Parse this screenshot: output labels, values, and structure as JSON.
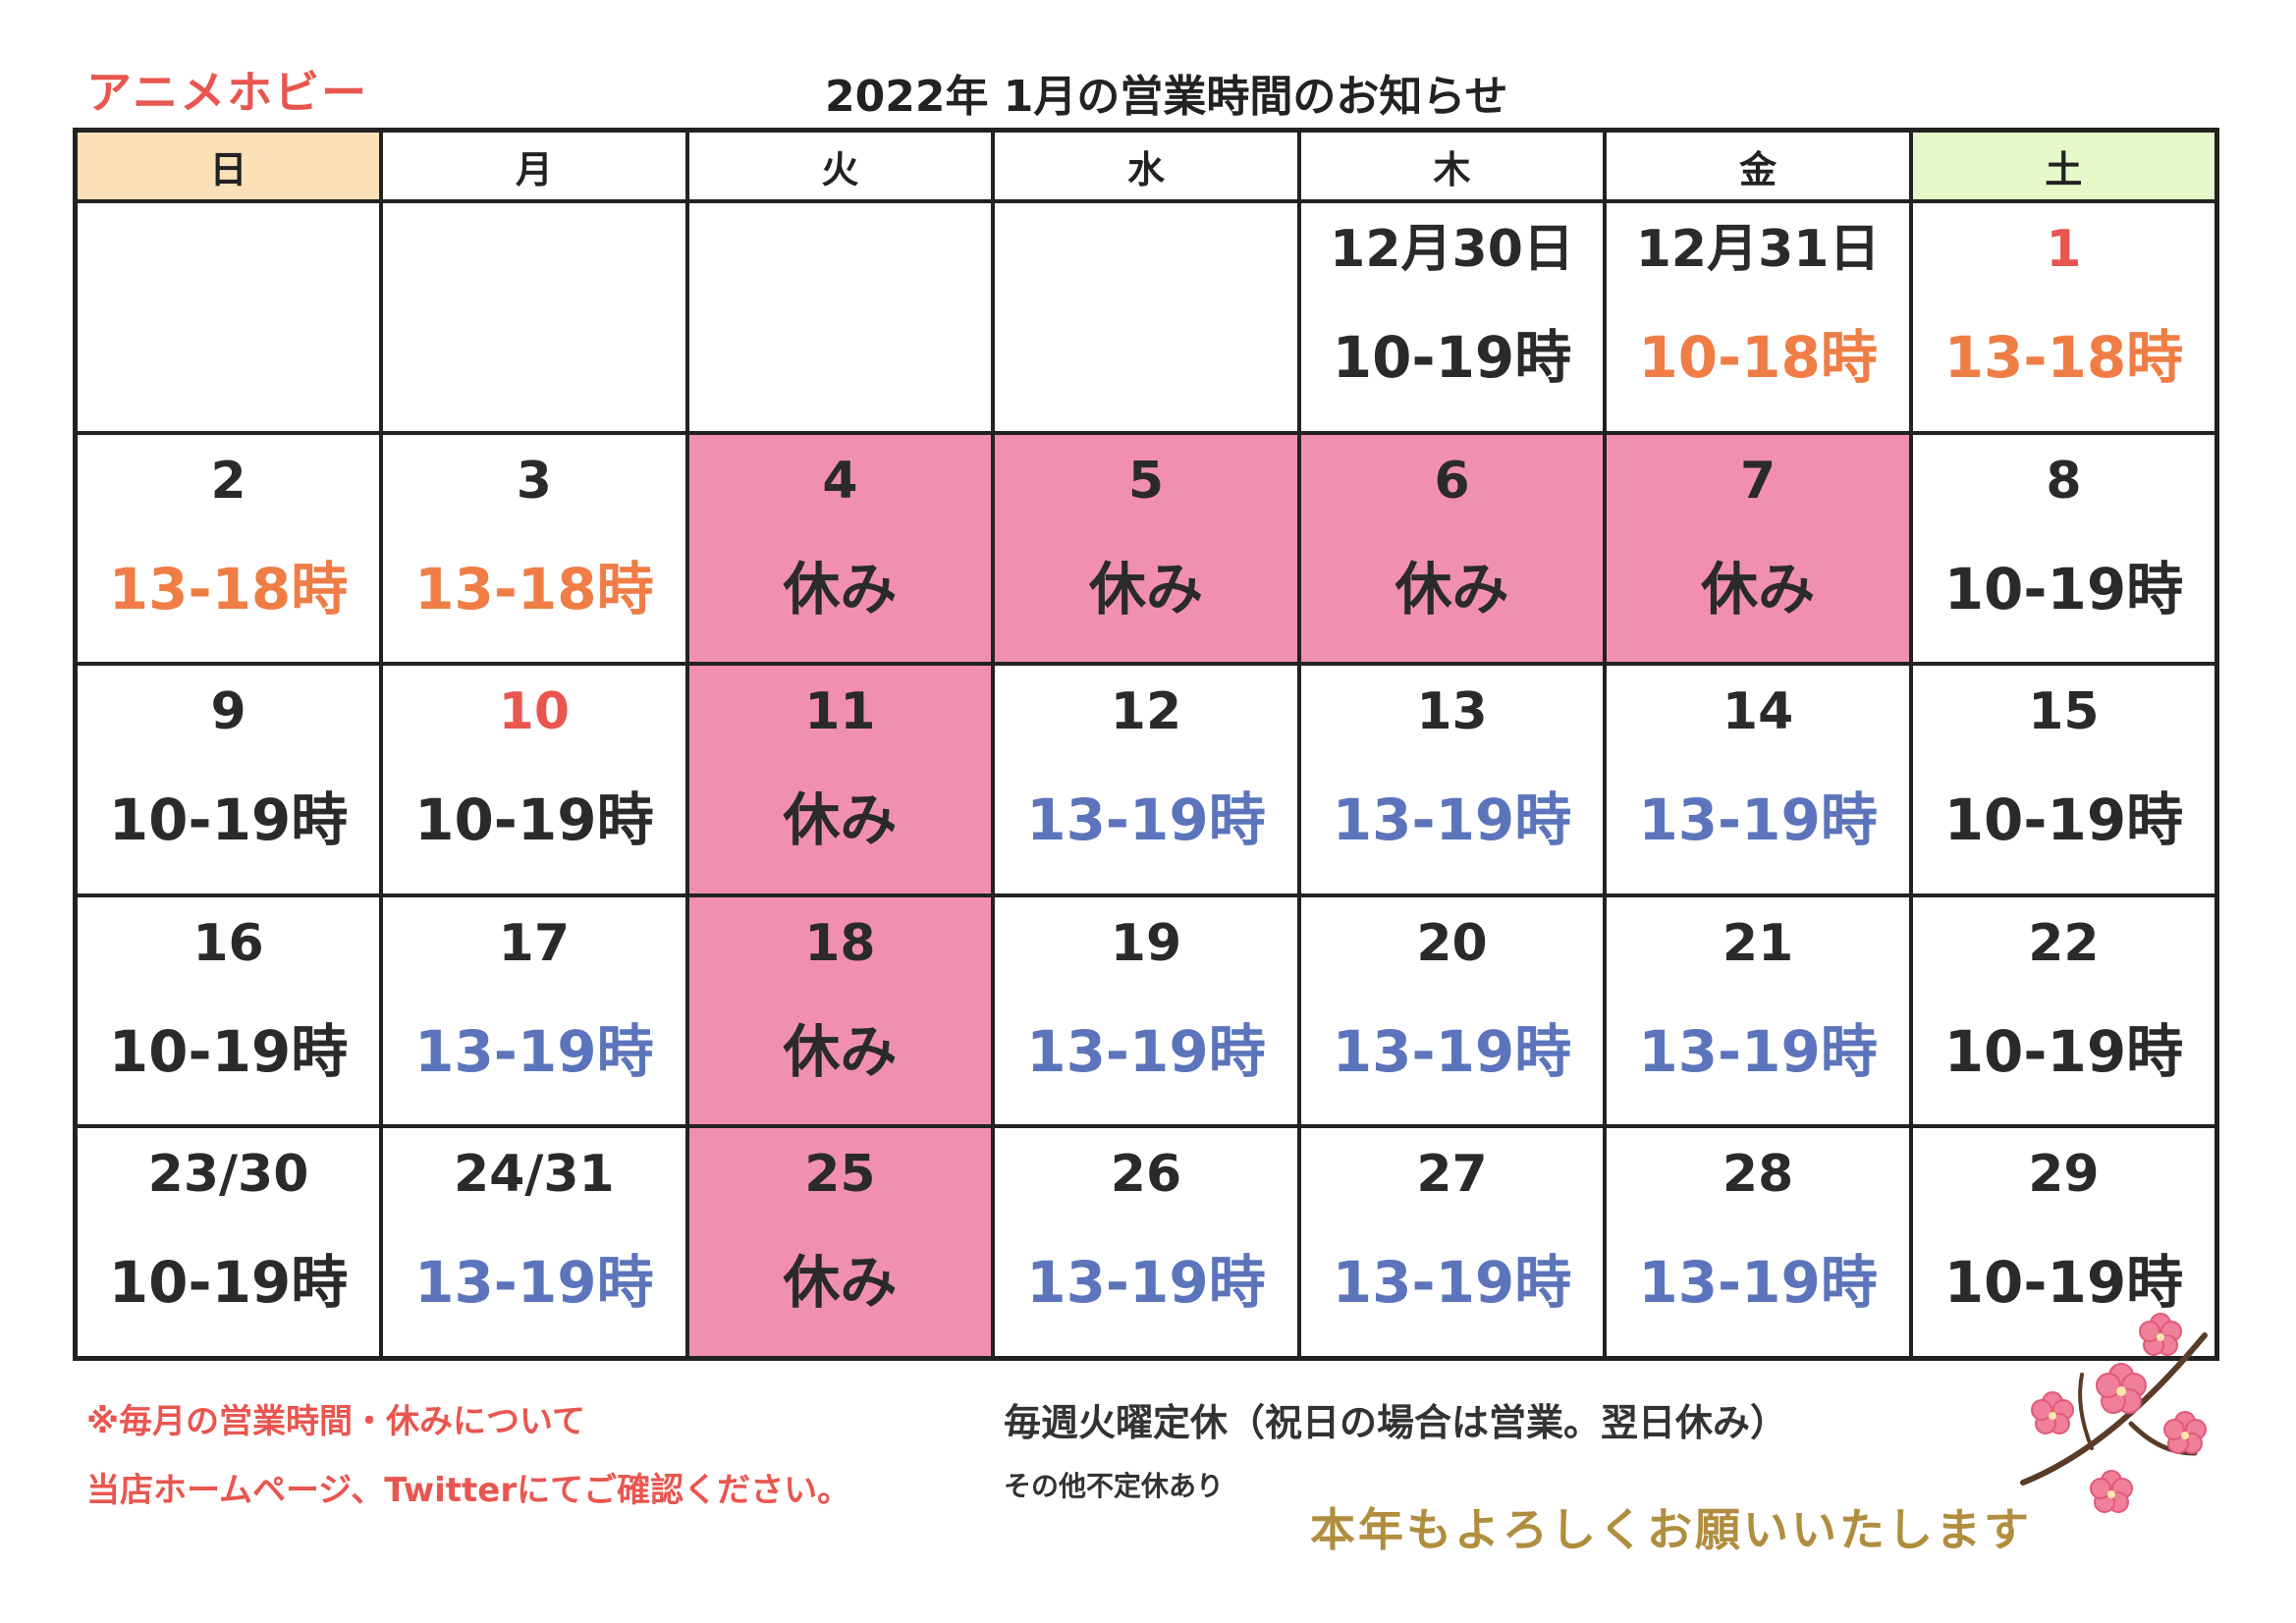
{
  "header": {
    "shop_name": "アニメホビー",
    "title": "2022年 1月の営業時間のお知らせ"
  },
  "weekdays": [
    "日",
    "月",
    "火",
    "水",
    "木",
    "金",
    "土"
  ],
  "colors": {
    "sunday_header": "#fbe0b8",
    "saturday_header": "#e6f7c8",
    "closed_bg": "#f08fb2",
    "hours_black": "#2a2a2a",
    "hours_orange": "#ef7d45",
    "hours_blue": "#5b74bb",
    "red": "#e8564f",
    "gold": "#b18d3e"
  },
  "weeks": [
    [
      {
        "date": "",
        "hours": ""
      },
      {
        "date": "",
        "hours": ""
      },
      {
        "date": "",
        "hours": ""
      },
      {
        "date": "",
        "hours": ""
      },
      {
        "date": "12月30日",
        "hours": "10-19時",
        "hours_color": "black"
      },
      {
        "date": "12月31日",
        "hours": "10-18時",
        "hours_color": "orange"
      },
      {
        "date": "1",
        "date_color": "red",
        "hours": "13-18時",
        "hours_color": "orange"
      }
    ],
    [
      {
        "date": "2",
        "hours": "13-18時",
        "hours_color": "orange"
      },
      {
        "date": "3",
        "hours": "13-18時",
        "hours_color": "orange"
      },
      {
        "date": "4",
        "hours": "休み",
        "closed": true
      },
      {
        "date": "5",
        "hours": "休み",
        "closed": true
      },
      {
        "date": "6",
        "hours": "休み",
        "closed": true
      },
      {
        "date": "7",
        "hours": "休み",
        "closed": true
      },
      {
        "date": "8",
        "hours": "10-19時",
        "hours_color": "black"
      }
    ],
    [
      {
        "date": "9",
        "hours": "10-19時",
        "hours_color": "black"
      },
      {
        "date": "10",
        "date_color": "red",
        "hours": "10-19時",
        "hours_color": "black"
      },
      {
        "date": "11",
        "hours": "休み",
        "closed": true
      },
      {
        "date": "12",
        "hours": "13-19時",
        "hours_color": "blue"
      },
      {
        "date": "13",
        "hours": "13-19時",
        "hours_color": "blue"
      },
      {
        "date": "14",
        "hours": "13-19時",
        "hours_color": "blue"
      },
      {
        "date": "15",
        "hours": "10-19時",
        "hours_color": "black"
      }
    ],
    [
      {
        "date": "16",
        "hours": "10-19時",
        "hours_color": "black"
      },
      {
        "date": "17",
        "hours": "13-19時",
        "hours_color": "blue"
      },
      {
        "date": "18",
        "hours": "休み",
        "closed": true
      },
      {
        "date": "19",
        "hours": "13-19時",
        "hours_color": "blue"
      },
      {
        "date": "20",
        "hours": "13-19時",
        "hours_color": "blue"
      },
      {
        "date": "21",
        "hours": "13-19時",
        "hours_color": "blue"
      },
      {
        "date": "22",
        "hours": "10-19時",
        "hours_color": "black"
      }
    ],
    [
      {
        "date": "23/30",
        "hours": "10-19時",
        "hours_color": "black"
      },
      {
        "date": "24/31",
        "hours": "13-19時",
        "hours_color": "blue"
      },
      {
        "date": "25",
        "hours": "休み",
        "closed": true
      },
      {
        "date": "26",
        "hours": "13-19時",
        "hours_color": "blue"
      },
      {
        "date": "27",
        "hours": "13-19時",
        "hours_color": "blue"
      },
      {
        "date": "28",
        "hours": "13-19時",
        "hours_color": "blue"
      },
      {
        "date": "29",
        "hours": "10-19時",
        "hours_color": "black"
      }
    ]
  ],
  "footer": {
    "note_line1": "※毎月の営業時間・休みについて",
    "note_line2": "当店ホームページ、Twitterにてご確認ください。",
    "regular_holiday": "毎週火曜定休（祝日の場合は営業。翌日休み）",
    "irregular_holiday": "その他不定休あり",
    "greeting": "本年もよろしくお願いいたします"
  },
  "decoration": {
    "icon": "plum-blossom-icon"
  }
}
